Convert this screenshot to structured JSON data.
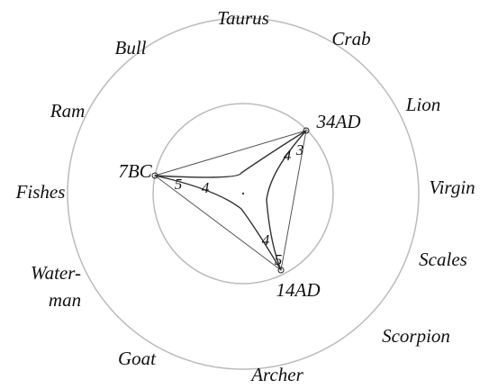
{
  "signs": [
    "Taurus",
    "Crab",
    "Lion",
    "Virgin",
    "Scales",
    "Scorpion",
    "Archer",
    "Goat",
    "Water-",
    "man",
    "Fishes",
    "Ram",
    "Bull"
  ],
  "points": [
    {
      "label": "7BC",
      "marks": [
        "5",
        "4"
      ]
    },
    {
      "label": "34AD",
      "marks": [
        "4",
        "3"
      ]
    },
    {
      "label": "14AD",
      "marks": [
        "4",
        "5"
      ]
    }
  ]
}
